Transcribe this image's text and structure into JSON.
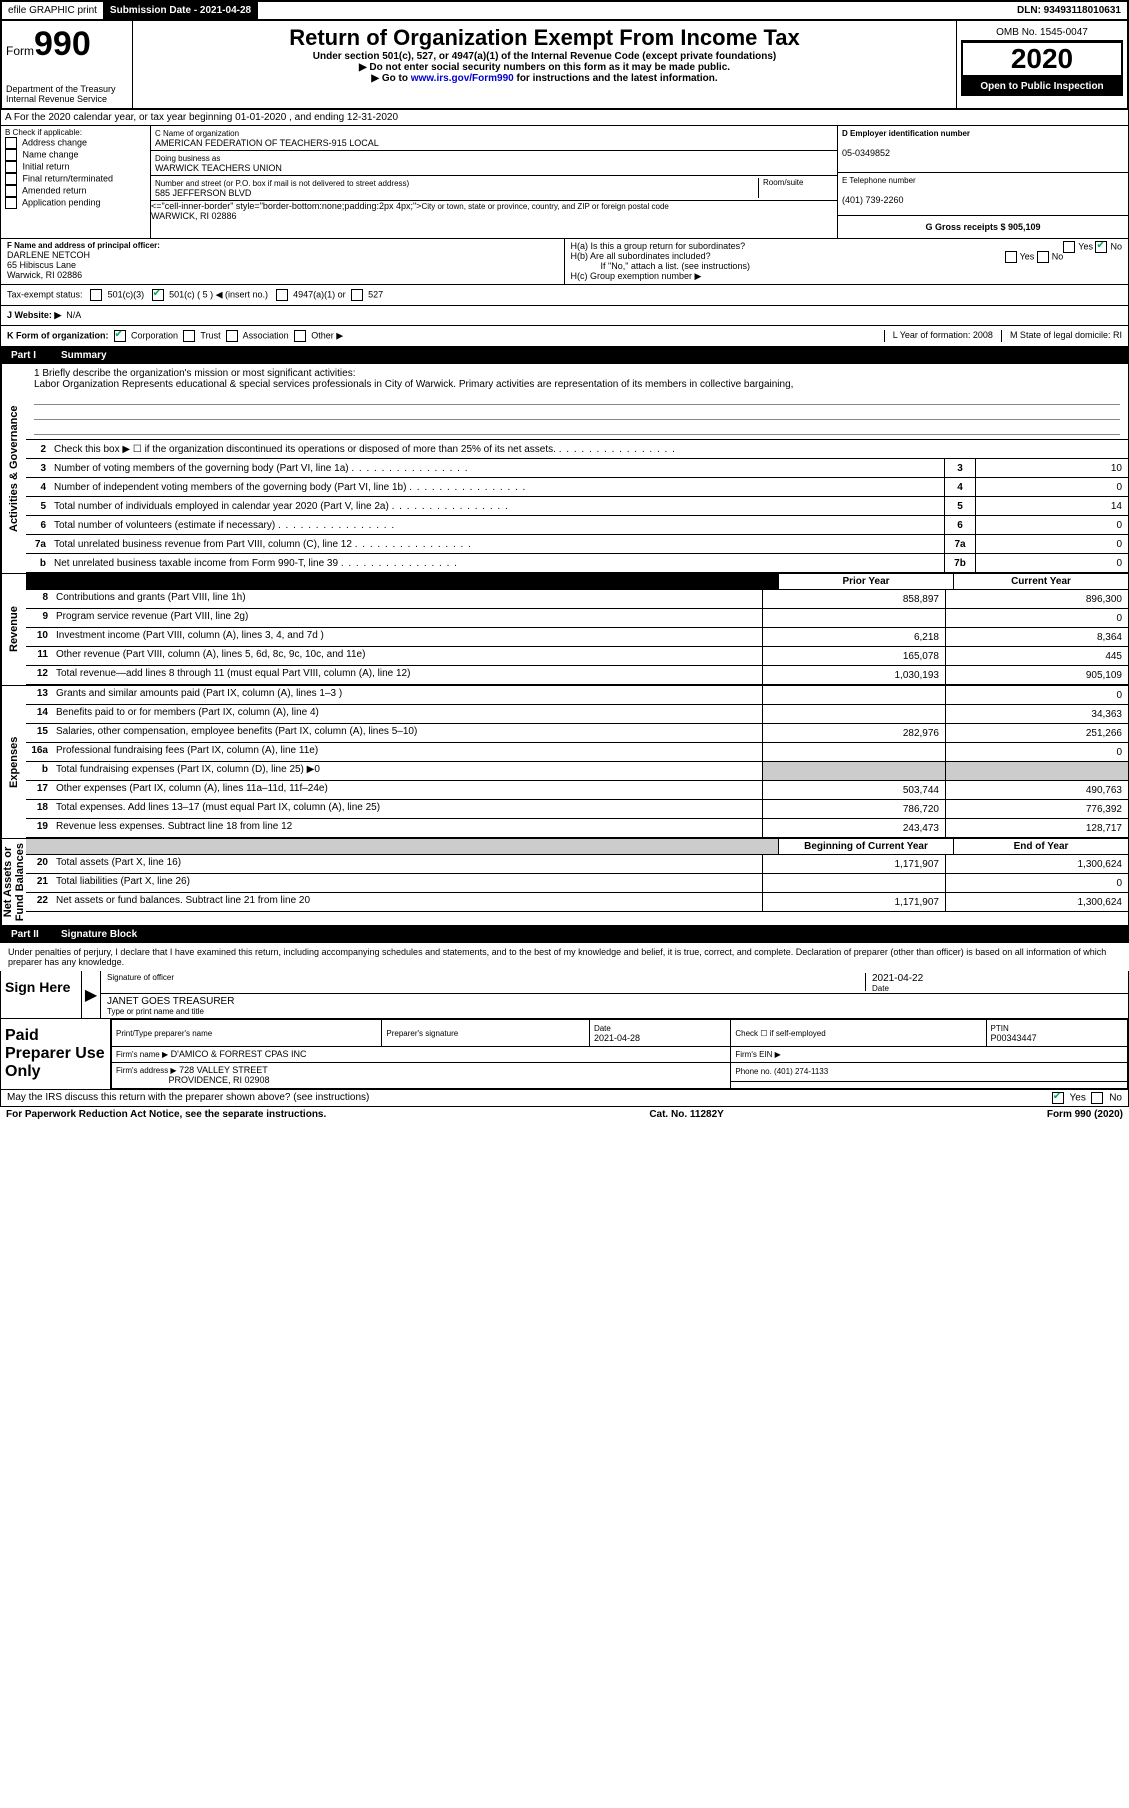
{
  "top_bar": {
    "efile": "efile GRAPHIC print",
    "submission_label": "Submission Date - 2021-04-28",
    "dln": "DLN: 93493118010631"
  },
  "header": {
    "form_prefix": "Form",
    "form_no": "990",
    "title": "Return of Organization Exempt From Income Tax",
    "sub1": "Under section 501(c), 527, or 4947(a)(1) of the Internal Revenue Code (except private foundations)",
    "sub2": "▶ Do not enter social security numbers on this form as it may be made public.",
    "sub3_pre": "▶ Go to ",
    "sub3_link": "www.irs.gov/Form990",
    "sub3_post": " for instructions and the latest information.",
    "dept": "Department of the Treasury\nInternal Revenue Service",
    "omb": "OMB No. 1545-0047",
    "year": "2020",
    "open": "Open to Public Inspection"
  },
  "line_a": "A For the 2020 calendar year, or tax year beginning 01-01-2020    , and ending 12-31-2020",
  "section_b": {
    "b_label": "B Check if applicable:",
    "checks": [
      "Address change",
      "Name change",
      "Initial return",
      "Final return/terminated",
      "Amended return",
      "Application pending"
    ],
    "c_label": "C Name of organization",
    "org_name": "AMERICAN FEDERATION OF TEACHERS-915 LOCAL",
    "dba_label": "Doing business as",
    "dba": "WARWICK TEACHERS UNION",
    "addr_label": "Number and street (or P.O. box if mail is not delivered to street address)",
    "addr": "585 JEFFERSON BLVD",
    "room": "Room/suite",
    "city_label": "City or town, state or province, country, and ZIP or foreign postal code",
    "city": "WARWICK, RI  02886",
    "d_label": "D Employer identification number",
    "ein": "05-0349852",
    "e_label": "E Telephone number",
    "phone": "(401) 739-2260",
    "g_label": "G Gross receipts $ 905,109"
  },
  "section_f": {
    "f_label": "F  Name and address of principal officer:",
    "officer": "DARLENE NETCOH\n65 Hibiscus Lane\nWarwick, RI  02886",
    "ha": "H(a)  Is this a group return for subordinates?",
    "hb": "H(b)  Are all subordinates included?",
    "hb_note": "If \"No,\" attach a list. (see instructions)",
    "hc": "H(c)  Group exemption number ▶",
    "yes": "Yes",
    "no": "No"
  },
  "tax_status": {
    "label": "Tax-exempt status:",
    "opt1": "501(c)(3)",
    "opt2": "501(c) ( 5 ) ◀ (insert no.)",
    "opt3": "4947(a)(1) or",
    "opt4": "527"
  },
  "website": {
    "label": "J  Website: ▶",
    "value": "N/A"
  },
  "line_k": {
    "k": "K Form of organization:",
    "corp": "Corporation",
    "trust": "Trust",
    "assoc": "Association",
    "other": "Other ▶",
    "l": "L Year of formation: 2008",
    "m": "M State of legal domicile: RI"
  },
  "part1": {
    "num": "Part I",
    "title": "Summary"
  },
  "mission": {
    "q1": "1  Briefly describe the organization's mission or most significant activities:",
    "text": "Labor Organization Represents educational & special services professionals in City of Warwick. Primary activities are representation of its members in collective bargaining,"
  },
  "gov_rows": [
    {
      "n": "2",
      "label": "Check this box ▶ ☐  if the organization discontinued its operations or disposed of more than 25% of its net assets."
    },
    {
      "n": "3",
      "label": "Number of voting members of the governing body (Part VI, line 1a)",
      "box": "3",
      "val": "10"
    },
    {
      "n": "4",
      "label": "Number of independent voting members of the governing body (Part VI, line 1b)",
      "box": "4",
      "val": "0"
    },
    {
      "n": "5",
      "label": "Total number of individuals employed in calendar year 2020 (Part V, line 2a)",
      "box": "5",
      "val": "14"
    },
    {
      "n": "6",
      "label": "Total number of volunteers (estimate if necessary)",
      "box": "6",
      "val": "0"
    },
    {
      "n": "7a",
      "label": "Total unrelated business revenue from Part VIII, column (C), line 12",
      "box": "7a",
      "val": "0"
    },
    {
      "n": "b",
      "label": "Net unrelated business taxable income from Form 990-T, line 39",
      "box": "7b",
      "val": "0"
    }
  ],
  "col_headers": {
    "prior": "Prior Year",
    "current": "Current Year"
  },
  "revenue_rows": [
    {
      "n": "8",
      "label": "Contributions and grants (Part VIII, line 1h)",
      "v1": "858,897",
      "v2": "896,300"
    },
    {
      "n": "9",
      "label": "Program service revenue (Part VIII, line 2g)",
      "v1": "",
      "v2": "0"
    },
    {
      "n": "10",
      "label": "Investment income (Part VIII, column (A), lines 3, 4, and 7d )",
      "v1": "6,218",
      "v2": "8,364"
    },
    {
      "n": "11",
      "label": "Other revenue (Part VIII, column (A), lines 5, 6d, 8c, 9c, 10c, and 11e)",
      "v1": "165,078",
      "v2": "445"
    },
    {
      "n": "12",
      "label": "Total revenue—add lines 8 through 11 (must equal Part VIII, column (A), line 12)",
      "v1": "1,030,193",
      "v2": "905,109"
    }
  ],
  "expense_rows": [
    {
      "n": "13",
      "label": "Grants and similar amounts paid (Part IX, column (A), lines 1–3 )",
      "v1": "",
      "v2": "0"
    },
    {
      "n": "14",
      "label": "Benefits paid to or for members (Part IX, column (A), line 4)",
      "v1": "",
      "v2": "34,363"
    },
    {
      "n": "15",
      "label": "Salaries, other compensation, employee benefits (Part IX, column (A), lines 5–10)",
      "v1": "282,976",
      "v2": "251,266"
    },
    {
      "n": "16a",
      "label": "Professional fundraising fees (Part IX, column (A), line 11e)",
      "v1": "",
      "v2": "0"
    },
    {
      "n": "b",
      "label": "Total fundraising expenses (Part IX, column (D), line 25) ▶0",
      "v1": "grey",
      "v2": "grey"
    },
    {
      "n": "17",
      "label": "Other expenses (Part IX, column (A), lines 11a–11d, 11f–24e)",
      "v1": "503,744",
      "v2": "490,763"
    },
    {
      "n": "18",
      "label": "Total expenses. Add lines 13–17 (must equal Part IX, column (A), line 25)",
      "v1": "786,720",
      "v2": "776,392"
    },
    {
      "n": "19",
      "label": "Revenue less expenses. Subtract line 18 from line 12",
      "v1": "243,473",
      "v2": "128,717"
    }
  ],
  "net_headers": {
    "begin": "Beginning of Current Year",
    "end": "End of Year"
  },
  "net_rows": [
    {
      "n": "20",
      "label": "Total assets (Part X, line 16)",
      "v1": "1,171,907",
      "v2": "1,300,624"
    },
    {
      "n": "21",
      "label": "Total liabilities (Part X, line 26)",
      "v1": "",
      "v2": "0"
    },
    {
      "n": "22",
      "label": "Net assets or fund balances. Subtract line 21 from line 20",
      "v1": "1,171,907",
      "v2": "1,300,624"
    }
  ],
  "vert": {
    "gov": "Activities & Governance",
    "rev": "Revenue",
    "exp": "Expenses",
    "net": "Net Assets or\nFund Balances"
  },
  "part2": {
    "num": "Part II",
    "title": "Signature Block"
  },
  "sig": {
    "declaration": "Under penalties of perjury, I declare that I have examined this return, including accompanying schedules and statements, and to the best of my knowledge and belief, it is true, correct, and complete. Declaration of preparer (other than officer) is based on all information of which preparer has any knowledge.",
    "sign_here": "Sign Here",
    "sig_officer": "Signature of officer",
    "date": "2021-04-22",
    "date_lbl": "Date",
    "name": "JANET GOES  TREASURER",
    "name_lbl": "Type or print name and title"
  },
  "prep": {
    "label": "Paid Preparer Use Only",
    "h1": "Print/Type preparer's name",
    "h2": "Preparer's signature",
    "h3": "Date",
    "h3v": "2021-04-28",
    "h4": "Check ☐  if self-employed",
    "h5": "PTIN",
    "ptin": "P00343447",
    "firm_lbl": "Firm's name    ▶",
    "firm": "D'AMICO & FORREST CPAS INC",
    "ein_lbl": "Firm's EIN ▶",
    "addr_lbl": "Firm's address ▶",
    "addr1": "728 VALLEY STREET",
    "addr2": "PROVIDENCE, RI  02908",
    "phone_lbl": "Phone no. (401) 274-1133"
  },
  "discuss": {
    "q": "May the IRS discuss this return with the preparer shown above? (see instructions)",
    "yes": "Yes",
    "no": "No"
  },
  "footer": {
    "l": "For Paperwork Reduction Act Notice, see the separate instructions.",
    "m": "Cat. No. 11282Y",
    "r": "Form 990 (2020)"
  }
}
